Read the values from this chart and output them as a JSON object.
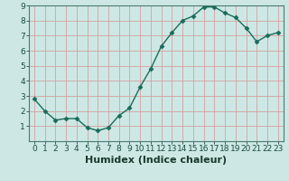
{
  "x": [
    0,
    1,
    2,
    3,
    4,
    5,
    6,
    7,
    8,
    9,
    10,
    11,
    12,
    13,
    14,
    15,
    16,
    17,
    18,
    19,
    20,
    21,
    22,
    23
  ],
  "y": [
    2.8,
    2.0,
    1.4,
    1.5,
    1.5,
    0.9,
    0.7,
    0.9,
    1.7,
    2.2,
    3.6,
    4.8,
    6.3,
    7.2,
    8.0,
    8.3,
    8.9,
    8.9,
    8.5,
    8.2,
    7.5,
    6.6,
    7.0,
    7.2
  ],
  "xlabel": "Humidex (Indice chaleur)",
  "line_color": "#1a6b5a",
  "bg_color": "#cde8e4",
  "grid_color": "#d4a0a0",
  "axis_color": "#4a7a70",
  "ylim": [
    0,
    9
  ],
  "xlim": [
    -0.5,
    23.5
  ],
  "yticks": [
    1,
    2,
    3,
    4,
    5,
    6,
    7,
    8,
    9
  ],
  "xticks": [
    0,
    1,
    2,
    3,
    4,
    5,
    6,
    7,
    8,
    9,
    10,
    11,
    12,
    13,
    14,
    15,
    16,
    17,
    18,
    19,
    20,
    21,
    22,
    23
  ],
  "xlabel_fontsize": 8,
  "tick_fontsize": 6.5,
  "marker_size": 2.5,
  "line_width": 1.0
}
